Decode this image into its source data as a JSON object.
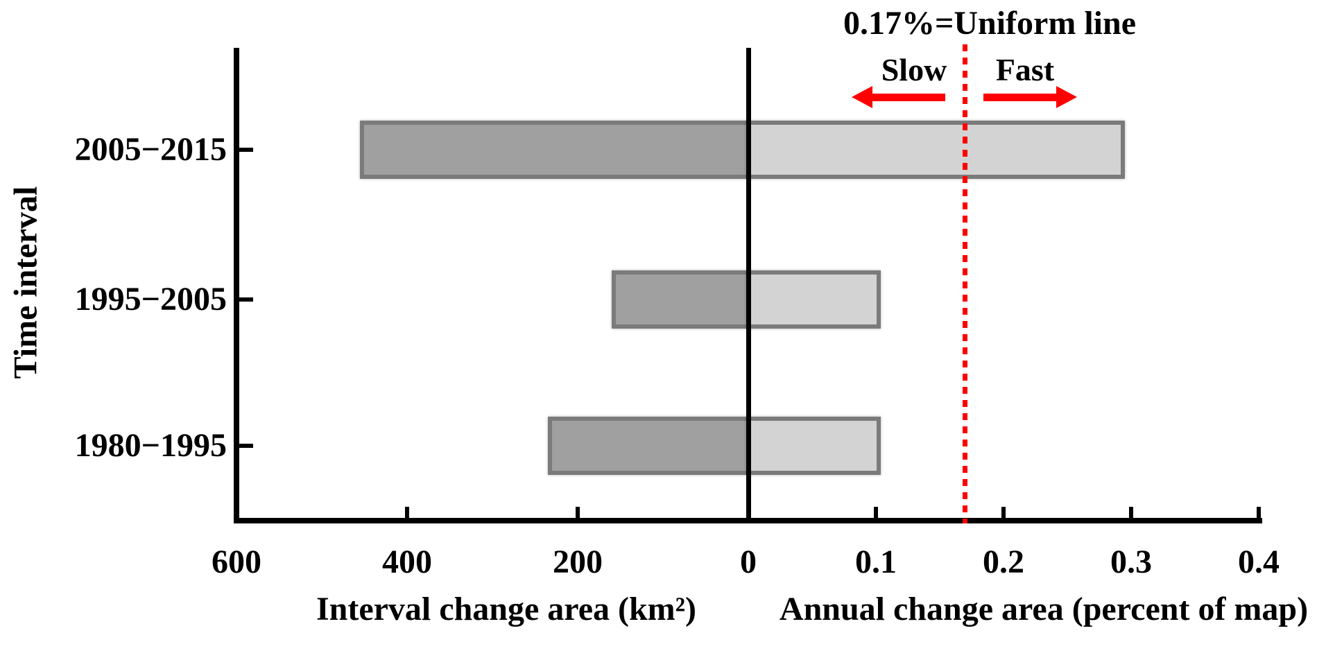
{
  "figure": {
    "background": "#ffffff"
  },
  "chart_data": {
    "type": "bar",
    "orientation": "horizontal-diverging",
    "title": "",
    "ylabel": "Time interval",
    "categories": [
      "2005−2015",
      "1995−2005",
      "1980−1995"
    ],
    "series": [
      {
        "name": "Interval change area (km²)",
        "axis": "km2",
        "direction": "left-of-zero",
        "values": [
          455,
          160,
          235
        ],
        "fill": "#a0a0a0"
      },
      {
        "name": "Annual change area (percent of map)",
        "axis": "pct",
        "direction": "right-of-zero",
        "values": [
          0.295,
          0.104,
          0.104
        ],
        "fill": "#d3d3d3"
      }
    ],
    "left_axis": {
      "label": "Interval change area (km²)",
      "max": 600,
      "tick_values": [
        600,
        400,
        200,
        0
      ]
    },
    "right_axis": {
      "label": "Annual change area (percent of map)",
      "max": 0.4,
      "tick_values": [
        0.1,
        0.2,
        0.3,
        0.4
      ]
    },
    "x_ticks": [
      {
        "label": "600",
        "axis": "km2",
        "value": 600
      },
      {
        "label": "400",
        "axis": "km2",
        "value": 400
      },
      {
        "label": "200",
        "axis": "km2",
        "value": 200
      },
      {
        "label": "0",
        "axis": "km2",
        "value": 0
      },
      {
        "label": "0.1",
        "axis": "pct",
        "value": 0.1
      },
      {
        "label": "0.2",
        "axis": "pct",
        "value": 0.2
      },
      {
        "label": "0.3",
        "axis": "pct",
        "value": 0.3
      },
      {
        "label": "0.4",
        "axis": "pct",
        "value": 0.4
      }
    ],
    "uniform_line": {
      "value": 0.17,
      "label": "0.17%=Uniform line",
      "color": "#ff0000",
      "style": "dotted"
    },
    "annotations": {
      "slow": "Slow",
      "fast": "Fast",
      "arrow_color": "#ff0000"
    },
    "colors": {
      "dark_bar_fill": "#a0a0a0",
      "light_bar_fill": "#d3d3d3",
      "bar_border": "#7b7b7b",
      "axis": "#000000",
      "red": "#ff0000"
    },
    "legend_position": "none",
    "grid": false
  }
}
